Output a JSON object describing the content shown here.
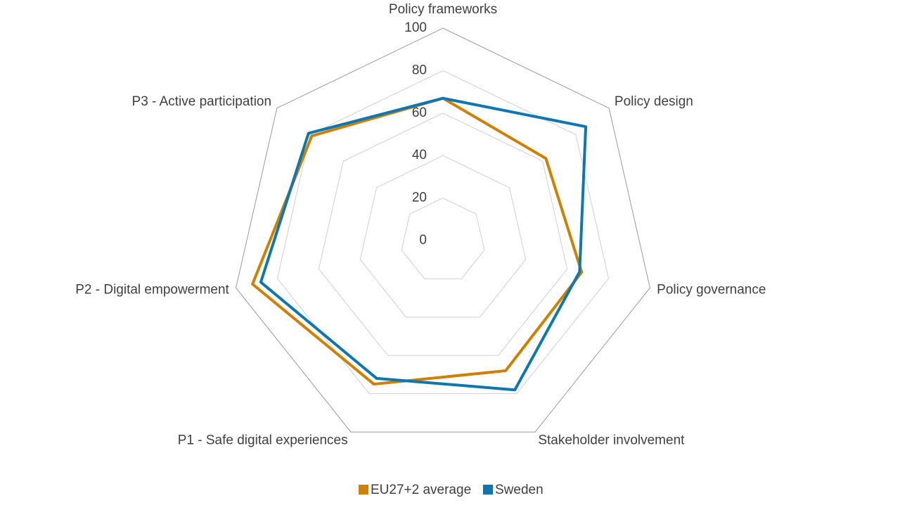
{
  "chart_data": {
    "type": "radar",
    "categories": [
      "Policy frameworks",
      "Policy design",
      "Policy governance",
      "Stakeholder involvement",
      "P1 - Safe digital experiences",
      "P2 - Digital empowerment",
      "P3 - Active participation"
    ],
    "series": [
      {
        "name": "EU27+2 average",
        "color": "#d08000",
        "values": [
          67,
          62,
          67,
          68,
          75,
          92,
          79
        ]
      },
      {
        "name": "Sweden",
        "color": "#0e76b0",
        "values": [
          67,
          86,
          66,
          78,
          72,
          88,
          81
        ]
      }
    ],
    "ylim": [
      0,
      100
    ],
    "yticks": [
      0,
      20,
      40,
      60,
      80,
      100
    ],
    "grid": true,
    "legend": "bottom"
  }
}
